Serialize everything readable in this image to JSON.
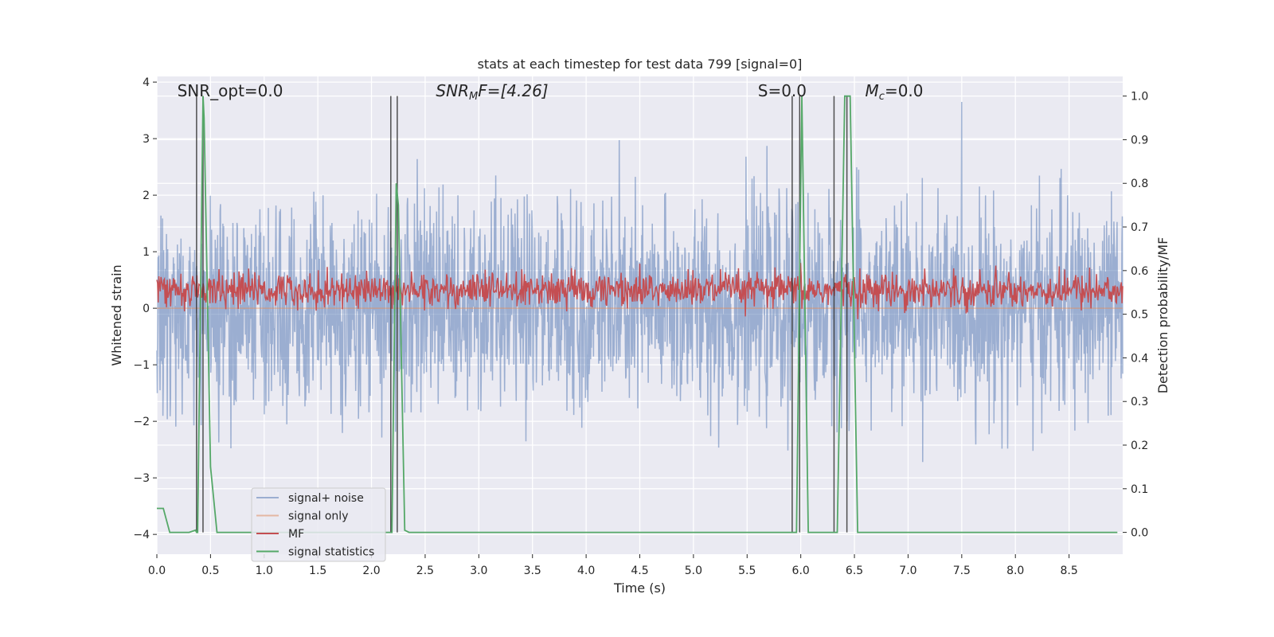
{
  "chart_data": {
    "type": "line",
    "title": "stats at each timestep for test data 799 [signal=0]",
    "xlabel": "Time (s)",
    "ylabel": "Whitened strain",
    "ylabel_right": "Detection probability/MF",
    "xlim": [
      0.0,
      9.0
    ],
    "ylim": [
      -4.35,
      4.1
    ],
    "ylim_right": [
      -0.05,
      1.045
    ],
    "xticks": [
      0.0,
      0.5,
      1.0,
      1.5,
      2.0,
      2.5,
      3.0,
      3.5,
      4.0,
      4.5,
      5.0,
      5.5,
      6.0,
      6.5,
      7.0,
      7.5,
      8.0,
      8.5
    ],
    "xtick_labels": [
      "0.0",
      "0.5",
      "1.0",
      "1.5",
      "2.0",
      "2.5",
      "3.0",
      "3.5",
      "4.0",
      "4.5",
      "5.0",
      "5.5",
      "6.0",
      "6.5",
      "7.0",
      "7.5",
      "8.0",
      "8.5"
    ],
    "yticks": [
      -4,
      -3,
      -2,
      -1,
      0,
      1,
      2,
      3,
      4
    ],
    "ytick_labels": [
      "−4",
      "−3",
      "−2",
      "−1",
      "0",
      "1",
      "2",
      "3",
      "4"
    ],
    "yticks_right": [
      0.0,
      0.1,
      0.2,
      0.3,
      0.4,
      0.5,
      0.6,
      0.7,
      0.8,
      0.9,
      1.0
    ],
    "ytick_right_labels": [
      "0.0",
      "0.1",
      "0.2",
      "0.3",
      "0.4",
      "0.5",
      "0.6",
      "0.7",
      "0.8",
      "0.9",
      "1.0"
    ],
    "grid": true,
    "legend_position": "lower-left",
    "annotations": [
      {
        "text": "SNR_opt=0.0",
        "x": 0.19
      },
      {
        "text": "SNR",
        "sub": "M",
        "tail": "F=[4.26]",
        "x": 2.6
      },
      {
        "text": "S=0.0",
        "x": 5.6
      },
      {
        "text": "M",
        "sub": "c",
        "tail": "=0.0",
        "x": 6.6
      }
    ],
    "series": [
      {
        "name": "signal+ noise",
        "color": "#4c72b0",
        "opacity": 0.5,
        "axis": "left",
        "noise_std": 0.9,
        "values": "noise"
      },
      {
        "name": "signal only",
        "color": "#dd8452",
        "opacity": 0.5,
        "axis": "left",
        "values": "zero"
      },
      {
        "name": "MF",
        "color": "#c44e52",
        "axis": "right",
        "values": "noise",
        "mean": 0.555,
        "std": 0.02
      },
      {
        "name": "signal statistics",
        "color": "#55a868",
        "axis": "right",
        "x": [
          0.0,
          0.06,
          0.12,
          0.3,
          0.36,
          0.37,
          0.38,
          0.43,
          0.44,
          0.5,
          0.56,
          2.18,
          2.19,
          2.23,
          2.25,
          2.31,
          2.35,
          5.93,
          5.96,
          6.01,
          6.07,
          6.31,
          6.34,
          6.41,
          6.46,
          6.53,
          6.57,
          8.95
        ],
        "y": [
          0.055,
          0.055,
          0.0,
          0.0,
          0.005,
          0.0,
          0.0,
          1.0,
          0.95,
          0.15,
          0.0,
          0.0,
          0.0,
          0.8,
          0.75,
          0.005,
          0.0,
          0.0,
          0.0,
          1.0,
          0.0,
          0.0,
          0.0,
          1.0,
          1.0,
          0.0,
          0.0,
          0.0
        ]
      },
      {
        "name": "markers",
        "color": "#333333",
        "axis": "right",
        "vertical_x": [
          0.37,
          0.43,
          2.18,
          2.24,
          5.92,
          5.99,
          6.31,
          6.43
        ],
        "height": 1.0
      }
    ]
  }
}
